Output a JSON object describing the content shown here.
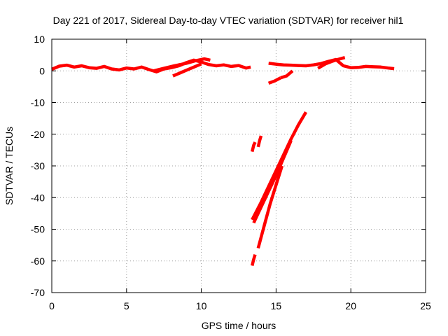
{
  "chart_data": {
    "type": "line",
    "title": "Day 221 of 2017, Sidereal Day-to-day VTEC variation (SDTVAR) for receiver hil1",
    "xlabel": "GPS time / hours",
    "ylabel": "SDTVAR / TECUs",
    "xlim": [
      0,
      25
    ],
    "ylim": [
      -70,
      10
    ],
    "xticks": [
      0,
      5,
      10,
      15,
      20,
      25
    ],
    "yticks": [
      10,
      0,
      -10,
      -20,
      -30,
      -40,
      -50,
      -60,
      -70
    ],
    "grid": true,
    "legend": "none",
    "color": "#ff0000",
    "series": [
      {
        "x": [
          0,
          0.5,
          1,
          1.5,
          2,
          2.5,
          3,
          3.5,
          4,
          4.5,
          5,
          5.5,
          6,
          6.5,
          7,
          7.5,
          8,
          8.5,
          9,
          9.5,
          10,
          10.5,
          11,
          11.5,
          12,
          12.5,
          13,
          13.3
        ],
        "y": [
          0.5,
          1.5,
          1.8,
          1.2,
          1.6,
          1.0,
          0.8,
          1.4,
          0.6,
          0.3,
          0.9,
          0.6,
          1.2,
          0.4,
          -0.3,
          0.6,
          1.0,
          1.6,
          2.6,
          3.4,
          2.8,
          2.0,
          1.6,
          1.9,
          1.4,
          1.7,
          0.9,
          1.2
        ]
      },
      {
        "x": [
          6.8,
          7.5,
          8.2,
          9.0,
          9.6,
          10.2,
          10.6
        ],
        "y": [
          0.0,
          0.8,
          1.6,
          2.4,
          3.2,
          3.8,
          3.4
        ]
      },
      {
        "x": [
          8.1,
          8.6,
          9.1,
          9.6,
          10.0
        ],
        "y": [
          -1.6,
          -0.6,
          0.4,
          1.4,
          2.2
        ]
      },
      {
        "x": [
          14.5,
          15,
          15.5,
          16,
          16.5,
          17,
          17.5,
          18,
          18.5,
          19,
          19.5,
          20,
          20.5,
          21,
          21.5,
          22,
          22.5,
          22.9
        ],
        "y": [
          2.4,
          2.1,
          1.9,
          1.8,
          1.7,
          1.6,
          1.9,
          2.3,
          3.0,
          3.6,
          1.6,
          1.0,
          1.1,
          1.4,
          1.3,
          1.2,
          0.9,
          0.7
        ]
      },
      {
        "x": [
          17.8,
          18.3,
          18.8,
          19.2,
          19.6
        ],
        "y": [
          0.8,
          2.2,
          3.1,
          3.7,
          4.2
        ]
      },
      {
        "x": [
          15.3,
          15.7,
          16.1
        ],
        "y": [
          -2.2,
          -1.6,
          0.0
        ]
      },
      {
        "x": [
          14.5,
          14.9,
          15.3
        ],
        "y": [
          -3.9,
          -3.2,
          -2.2
        ]
      },
      {
        "x": [
          13.4,
          13.5,
          13.6
        ],
        "y": [
          -25.5,
          -23.5,
          -22.5
        ]
      },
      {
        "x": [
          13.8,
          13.9,
          14.0
        ],
        "y": [
          -24.0,
          -22.0,
          -20.5
        ]
      },
      {
        "x": [
          13.4,
          14.0,
          14.5,
          15.0,
          15.5,
          16.0,
          16.5,
          17.0
        ],
        "y": [
          -47.0,
          -41.5,
          -36.5,
          -31.5,
          -26.5,
          -21.5,
          -17.0,
          -13.0
        ]
      },
      {
        "x": [
          13.5,
          14.0,
          14.5,
          15.0,
          15.5,
          16.0
        ],
        "y": [
          -48.0,
          -43.0,
          -38.0,
          -33.0,
          -27.5,
          -22.0
        ]
      },
      {
        "x": [
          13.8,
          14.2,
          14.6,
          15.0,
          15.4
        ],
        "y": [
          -56.0,
          -49.0,
          -42.0,
          -36.0,
          -30.0
        ]
      },
      {
        "x": [
          13.4,
          13.5,
          13.6
        ],
        "y": [
          -61.5,
          -59.5,
          -58.0
        ]
      }
    ]
  }
}
